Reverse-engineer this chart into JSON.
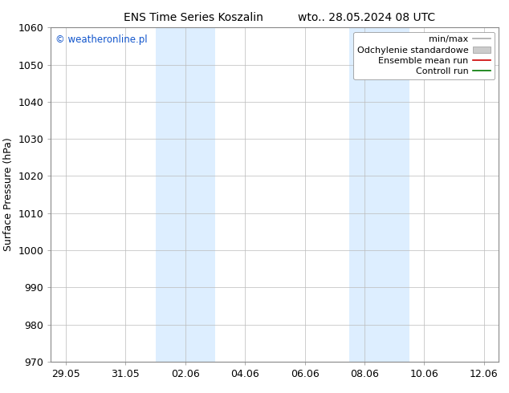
{
  "title_left": "ENS Time Series Koszalin",
  "title_right": "wto.. 28.05.2024 08 UTC",
  "ylabel": "Surface Pressure (hPa)",
  "ylim": [
    970,
    1060
  ],
  "yticks": [
    970,
    980,
    990,
    1000,
    1010,
    1020,
    1030,
    1040,
    1050,
    1060
  ],
  "x_tick_labels": [
    "29.05",
    "31.05",
    "02.06",
    "04.06",
    "06.06",
    "08.06",
    "10.06",
    "12.06"
  ],
  "x_tick_positions": [
    0,
    2,
    4,
    6,
    8,
    10,
    12,
    14
  ],
  "x_lim": [
    -0.5,
    14.5
  ],
  "shaded_bands": [
    {
      "x_start": 3.0,
      "x_end": 5.0
    },
    {
      "x_start": 9.5,
      "x_end": 11.5
    }
  ],
  "shade_color": "#ddeeff",
  "background_color": "#ffffff",
  "watermark_text": "© weatheronline.pl",
  "watermark_color": "#1155cc",
  "legend_items": [
    {
      "label": "min/max",
      "color": "#aaaaaa",
      "lw": 1.2,
      "ls": "-",
      "type": "line"
    },
    {
      "label": "Odchylenie standardowe",
      "color": "#cccccc",
      "lw": 8,
      "ls": "-",
      "type": "patch"
    },
    {
      "label": "Ensemble mean run",
      "color": "#cc0000",
      "lw": 1.2,
      "ls": "-",
      "type": "line"
    },
    {
      "label": "Controll run",
      "color": "#007700",
      "lw": 1.2,
      "ls": "-",
      "type": "line"
    }
  ],
  "grid_color": "#bbbbbb",
  "title_fontsize": 10,
  "axis_fontsize": 9,
  "tick_fontsize": 9,
  "legend_fontsize": 8
}
